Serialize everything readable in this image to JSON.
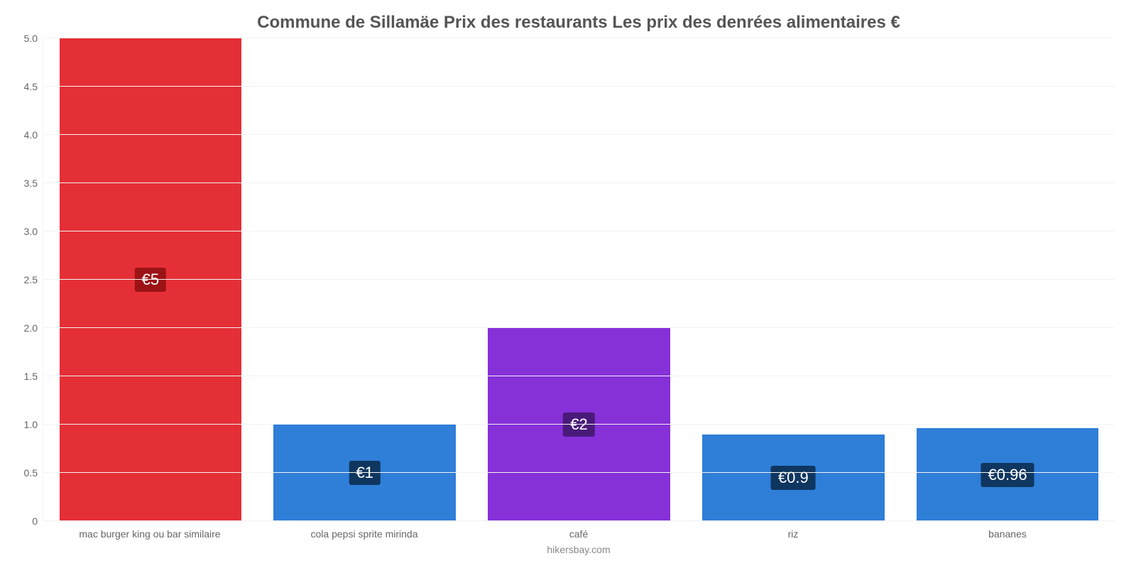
{
  "chart": {
    "type": "bar",
    "title": "Commune de Sillamäe Prix des restaurants Les prix des denrées alimentaires €",
    "title_color": "#555555",
    "title_fontsize": 24,
    "background_color": "#ffffff",
    "grid_color": "#f2f2f2",
    "axis_label_color": "#666666",
    "axis_fontsize": 14,
    "ylim": [
      0,
      5.0
    ],
    "yticks": [
      0,
      0.5,
      1.0,
      1.5,
      2.0,
      2.5,
      3.0,
      3.5,
      4.0,
      4.5,
      5.0
    ],
    "ytick_labels": [
      "0",
      "0.5",
      "1.0",
      "1.5",
      "2.0",
      "2.5",
      "3.0",
      "3.5",
      "4.0",
      "4.5",
      "5.0"
    ],
    "bar_width_pct": 85,
    "bars": [
      {
        "category": "mac burger king ou bar similaire",
        "value": 5,
        "display_label": "€5",
        "bar_color": "#e52f37",
        "label_bg_color": "#9c1316"
      },
      {
        "category": "cola pepsi sprite mirinda",
        "value": 1,
        "display_label": "€1",
        "bar_color": "#2f7ed8",
        "label_bg_color": "#0e365f"
      },
      {
        "category": "café",
        "value": 2,
        "display_label": "€2",
        "bar_color": "#8630d8",
        "label_bg_color": "#4a1a7a"
      },
      {
        "category": "riz",
        "value": 0.9,
        "display_label": "€0.9",
        "bar_color": "#2f7ed8",
        "label_bg_color": "#0e365f"
      },
      {
        "category": "bananes",
        "value": 0.96,
        "display_label": "€0.96",
        "bar_color": "#2f7ed8",
        "label_bg_color": "#0e365f"
      }
    ],
    "value_label_fontsize": 22,
    "value_label_color": "#ffffff",
    "credit": "hikersbay.com",
    "credit_color": "#888888"
  }
}
